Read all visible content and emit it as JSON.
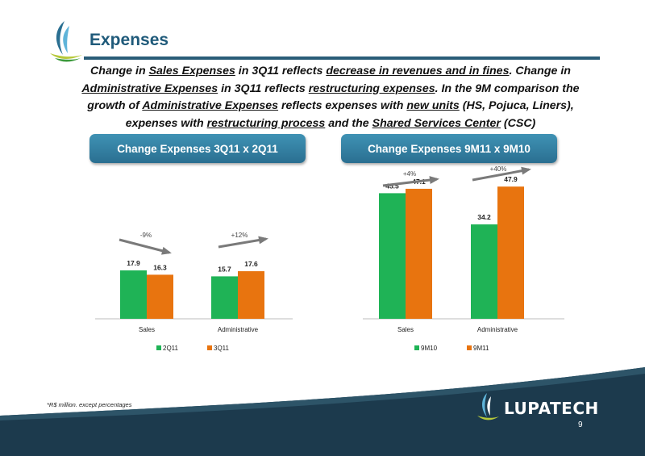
{
  "header": {
    "title": "Expenses",
    "summary": [
      {
        "t": "Change in "
      },
      {
        "t": "Sales Expenses",
        "u": true
      },
      {
        "t": " in 3Q11 reflects "
      },
      {
        "t": "decrease in revenues and in fines",
        "u": true
      },
      {
        "t": ". Change in "
      },
      {
        "t": "Administrative Expenses",
        "u": true
      },
      {
        "t": " in 3Q11 reflects "
      },
      {
        "t": "restructuring expenses",
        "u": true
      },
      {
        "t": ". In the 9M comparison the growth of "
      },
      {
        "t": "Administrative Expenses",
        "u": true
      },
      {
        "t": " reflects expenses with "
      },
      {
        "t": "new units",
        "u": true
      },
      {
        "t": " (HS, Pojuca, Liners), expenses with "
      },
      {
        "t": "restructuring process",
        "u": true
      },
      {
        "t": " and the "
      },
      {
        "t": "Shared Services Center",
        "u": true
      },
      {
        "t": " (CSC)"
      }
    ]
  },
  "sections": {
    "left_title": "Change Expenses 3Q11 x 2Q11",
    "right_title": "Change Expenses 9M11 x 9M10"
  },
  "chart_data": [
    {
      "type": "bar",
      "categories": [
        "Sales",
        "Administrative"
      ],
      "series": [
        {
          "name": "2Q11",
          "values": [
            17.9,
            15.7
          ],
          "labels": [
            "17.9",
            "15.7"
          ],
          "color": "#1fb356"
        },
        {
          "name": "3Q11",
          "values": [
            16.3,
            17.6
          ],
          "labels": [
            "16.3",
            "17.6"
          ],
          "color": "#e8740f"
        }
      ],
      "annotations": [
        "-9%",
        "+12%"
      ],
      "ylim": [
        0,
        52
      ],
      "legend": "bottom"
    },
    {
      "type": "bar",
      "categories": [
        "Sales",
        "Administrative"
      ],
      "series": [
        {
          "name": "9M10",
          "values": [
            45.5,
            34.2
          ],
          "labels": [
            "45.5",
            "34.2"
          ],
          "color": "#1fb356"
        },
        {
          "name": "9M11",
          "values": [
            47.1,
            47.9
          ],
          "labels": [
            "47.1",
            "47.9"
          ],
          "color": "#e8740f"
        }
      ],
      "annotations": [
        "+4%",
        "+40%"
      ],
      "ylim": [
        0,
        52
      ],
      "legend": "bottom"
    }
  ],
  "footer": {
    "note": "*R$ million. except percentages",
    "brand": "LUPATECH",
    "page_number": "9"
  },
  "colors": {
    "accent": "#2a5d78",
    "green": "#1fb356",
    "orange": "#e8740f",
    "footer": "#1c3a4d"
  }
}
